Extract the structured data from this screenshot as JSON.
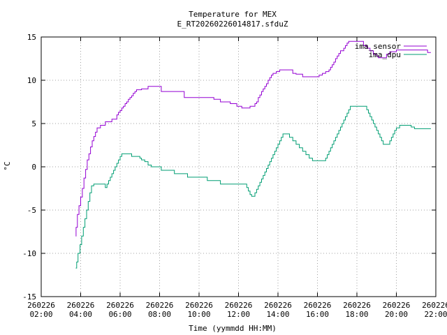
{
  "chart_data": {
    "type": "line",
    "title": "Temperature for MEX",
    "subtitle": "E_RT20260226014817.sfduZ",
    "xlabel": "Time (yymmdd HH:MM)",
    "ylabel": "°C",
    "xlim": [
      "260226 02:00",
      "260226 22:00"
    ],
    "ylim": [
      -15,
      15
    ],
    "grid": true,
    "legend": "top-right",
    "x_ticks": [
      {
        "date": "260226",
        "time": "02:00"
      },
      {
        "date": "260226",
        "time": "04:00"
      },
      {
        "date": "260226",
        "time": "06:00"
      },
      {
        "date": "260226",
        "time": "08:00"
      },
      {
        "date": "260226",
        "time": "10:00"
      },
      {
        "date": "260226",
        "time": "12:00"
      },
      {
        "date": "260226",
        "time": "14:00"
      },
      {
        "date": "260226",
        "time": "16:00"
      },
      {
        "date": "260226",
        "time": "18:00"
      },
      {
        "date": "260226",
        "time": "20:00"
      },
      {
        "date": "260226",
        "time": "22:00"
      }
    ],
    "y_ticks": [
      "-15",
      "-10",
      "-5",
      "0",
      "5",
      "10",
      "15"
    ],
    "series": [
      {
        "name": "ima_sensor",
        "color": "#9400d3",
        "step": true,
        "points": [
          [
            "03:45",
            -8.0
          ],
          [
            "03:46",
            -7.0
          ],
          [
            "03:50",
            -5.5
          ],
          [
            "03:55",
            -4.5
          ],
          [
            "04:00",
            -3.5
          ],
          [
            "04:05",
            -2.5
          ],
          [
            "04:10",
            -1.3
          ],
          [
            "04:15",
            -0.3
          ],
          [
            "04:20",
            0.8
          ],
          [
            "04:25",
            1.5
          ],
          [
            "04:30",
            2.3
          ],
          [
            "04:35",
            3.0
          ],
          [
            "04:40",
            3.5
          ],
          [
            "04:45",
            4.0
          ],
          [
            "04:50",
            4.5
          ],
          [
            "04:55",
            4.5
          ],
          [
            "05:00",
            4.8
          ],
          [
            "05:10",
            4.8
          ],
          [
            "05:15",
            5.2
          ],
          [
            "05:30",
            5.2
          ],
          [
            "05:35",
            5.5
          ],
          [
            "05:45",
            5.5
          ],
          [
            "05:50",
            6.0
          ],
          [
            "05:55",
            6.3
          ],
          [
            "06:00",
            6.5
          ],
          [
            "06:05",
            6.8
          ],
          [
            "06:10",
            7.0
          ],
          [
            "06:15",
            7.3
          ],
          [
            "06:20",
            7.5
          ],
          [
            "06:25",
            7.8
          ],
          [
            "06:30",
            8.0
          ],
          [
            "06:35",
            8.2
          ],
          [
            "06:40",
            8.5
          ],
          [
            "06:45",
            8.7
          ],
          [
            "06:50",
            8.9
          ],
          [
            "07:00",
            8.9
          ],
          [
            "07:05",
            9.0
          ],
          [
            "07:20",
            9.0
          ],
          [
            "07:25",
            9.3
          ],
          [
            "08:00",
            9.3
          ],
          [
            "08:05",
            8.7
          ],
          [
            "09:10",
            8.7
          ],
          [
            "09:15",
            8.0
          ],
          [
            "10:40",
            8.0
          ],
          [
            "10:45",
            7.8
          ],
          [
            "11:00",
            7.8
          ],
          [
            "11:05",
            7.5
          ],
          [
            "11:30",
            7.5
          ],
          [
            "11:35",
            7.3
          ],
          [
            "11:50",
            7.3
          ],
          [
            "11:55",
            7.0
          ],
          [
            "12:05",
            7.0
          ],
          [
            "12:10",
            6.8
          ],
          [
            "12:30",
            6.8
          ],
          [
            "12:35",
            7.0
          ],
          [
            "12:45",
            7.0
          ],
          [
            "12:50",
            7.3
          ],
          [
            "12:55",
            7.5
          ],
          [
            "13:00",
            8.0
          ],
          [
            "13:05",
            8.3
          ],
          [
            "13:10",
            8.7
          ],
          [
            "13:15",
            9.0
          ],
          [
            "13:20",
            9.3
          ],
          [
            "13:25",
            9.6
          ],
          [
            "13:30",
            10.0
          ],
          [
            "13:35",
            10.3
          ],
          [
            "13:40",
            10.6
          ],
          [
            "13:45",
            10.8
          ],
          [
            "13:55",
            11.0
          ],
          [
            "14:05",
            11.2
          ],
          [
            "14:40",
            11.2
          ],
          [
            "14:45",
            10.8
          ],
          [
            "14:55",
            10.7
          ],
          [
            "15:10",
            10.7
          ],
          [
            "15:15",
            10.4
          ],
          [
            "16:00",
            10.4
          ],
          [
            "16:05",
            10.6
          ],
          [
            "16:15",
            10.8
          ],
          [
            "16:25",
            11.0
          ],
          [
            "16:35",
            11.2
          ],
          [
            "16:40",
            11.5
          ],
          [
            "16:45",
            11.8
          ],
          [
            "16:50",
            12.1
          ],
          [
            "16:55",
            12.5
          ],
          [
            "17:00",
            12.8
          ],
          [
            "17:05",
            13.1
          ],
          [
            "17:10",
            13.4
          ],
          [
            "17:20",
            13.7
          ],
          [
            "17:25",
            14.0
          ],
          [
            "17:30",
            14.3
          ],
          [
            "17:35",
            14.5
          ],
          [
            "18:15",
            14.5
          ],
          [
            "18:20",
            14.0
          ],
          [
            "18:30",
            13.7
          ],
          [
            "18:40",
            13.4
          ],
          [
            "18:50",
            13.0
          ],
          [
            "19:00",
            12.8
          ],
          [
            "19:05",
            12.6
          ],
          [
            "19:25",
            12.6
          ],
          [
            "19:30",
            13.0
          ],
          [
            "19:40",
            13.3
          ],
          [
            "20:00",
            13.5
          ],
          [
            "21:30",
            13.5
          ],
          [
            "21:35",
            13.2
          ],
          [
            "21:45",
            13.2
          ]
        ]
      },
      {
        "name": "ima_dpu",
        "color": "#009e73",
        "step": true,
        "points": [
          [
            "03:45",
            -11.7
          ],
          [
            "03:48",
            -11.0
          ],
          [
            "03:52",
            -10.0
          ],
          [
            "03:58",
            -9.0
          ],
          [
            "04:03",
            -8.0
          ],
          [
            "04:08",
            -7.0
          ],
          [
            "04:13",
            -6.0
          ],
          [
            "04:18",
            -5.0
          ],
          [
            "04:23",
            -4.0
          ],
          [
            "04:28",
            -3.0
          ],
          [
            "04:33",
            -2.2
          ],
          [
            "04:40",
            -2.0
          ],
          [
            "05:10",
            -2.0
          ],
          [
            "05:15",
            -2.4
          ],
          [
            "05:20",
            -2.0
          ],
          [
            "05:25",
            -1.6
          ],
          [
            "05:30",
            -1.2
          ],
          [
            "05:35",
            -0.8
          ],
          [
            "05:40",
            -0.4
          ],
          [
            "05:45",
            0.0
          ],
          [
            "05:50",
            0.4
          ],
          [
            "05:55",
            0.8
          ],
          [
            "06:00",
            1.2
          ],
          [
            "06:05",
            1.5
          ],
          [
            "06:30",
            1.5
          ],
          [
            "06:35",
            1.2
          ],
          [
            "07:00",
            1.0
          ],
          [
            "07:05",
            0.8
          ],
          [
            "07:15",
            0.6
          ],
          [
            "07:25",
            0.2
          ],
          [
            "07:35",
            0.0
          ],
          [
            "08:00",
            0.0
          ],
          [
            "08:05",
            -0.4
          ],
          [
            "08:40",
            -0.4
          ],
          [
            "08:45",
            -0.8
          ],
          [
            "09:20",
            -0.8
          ],
          [
            "09:25",
            -1.2
          ],
          [
            "10:20",
            -1.2
          ],
          [
            "10:25",
            -1.6
          ],
          [
            "11:00",
            -1.6
          ],
          [
            "11:05",
            -2.0
          ],
          [
            "12:20",
            -2.0
          ],
          [
            "12:25",
            -2.4
          ],
          [
            "12:30",
            -2.8
          ],
          [
            "12:35",
            -3.2
          ],
          [
            "12:40",
            -3.4
          ],
          [
            "12:50",
            -3.0
          ],
          [
            "12:55",
            -2.6
          ],
          [
            "13:00",
            -2.2
          ],
          [
            "13:05",
            -1.8
          ],
          [
            "13:10",
            -1.4
          ],
          [
            "13:15",
            -1.0
          ],
          [
            "13:20",
            -0.6
          ],
          [
            "13:25",
            -0.2
          ],
          [
            "13:30",
            0.2
          ],
          [
            "13:35",
            0.6
          ],
          [
            "13:40",
            1.0
          ],
          [
            "13:45",
            1.4
          ],
          [
            "13:50",
            1.8
          ],
          [
            "13:55",
            2.2
          ],
          [
            "14:00",
            2.6
          ],
          [
            "14:05",
            3.0
          ],
          [
            "14:10",
            3.4
          ],
          [
            "14:15",
            3.8
          ],
          [
            "14:30",
            3.8
          ],
          [
            "14:35",
            3.4
          ],
          [
            "14:45",
            3.0
          ],
          [
            "14:55",
            2.6
          ],
          [
            "15:05",
            2.2
          ],
          [
            "15:15",
            1.8
          ],
          [
            "15:25",
            1.4
          ],
          [
            "15:35",
            1.0
          ],
          [
            "15:45",
            0.7
          ],
          [
            "16:20",
            0.7
          ],
          [
            "16:25",
            1.0
          ],
          [
            "16:30",
            1.4
          ],
          [
            "16:35",
            1.8
          ],
          [
            "16:40",
            2.2
          ],
          [
            "16:45",
            2.6
          ],
          [
            "16:50",
            3.0
          ],
          [
            "16:55",
            3.4
          ],
          [
            "17:00",
            3.8
          ],
          [
            "17:05",
            4.2
          ],
          [
            "17:10",
            4.6
          ],
          [
            "17:15",
            5.0
          ],
          [
            "17:20",
            5.4
          ],
          [
            "17:25",
            5.8
          ],
          [
            "17:30",
            6.2
          ],
          [
            "17:35",
            6.6
          ],
          [
            "17:40",
            7.0
          ],
          [
            "18:25",
            7.0
          ],
          [
            "18:30",
            6.6
          ],
          [
            "18:35",
            6.2
          ],
          [
            "18:40",
            5.8
          ],
          [
            "18:45",
            5.4
          ],
          [
            "18:50",
            5.0
          ],
          [
            "18:55",
            4.6
          ],
          [
            "19:00",
            4.2
          ],
          [
            "19:05",
            3.8
          ],
          [
            "19:10",
            3.4
          ],
          [
            "19:15",
            3.0
          ],
          [
            "19:20",
            2.6
          ],
          [
            "19:35",
            2.6
          ],
          [
            "19:40",
            3.0
          ],
          [
            "19:45",
            3.4
          ],
          [
            "19:50",
            3.8
          ],
          [
            "19:55",
            4.2
          ],
          [
            "20:00",
            4.5
          ],
          [
            "20:10",
            4.8
          ],
          [
            "20:40",
            4.8
          ],
          [
            "20:45",
            4.6
          ],
          [
            "20:55",
            4.4
          ],
          [
            "21:45",
            4.4
          ]
        ]
      }
    ]
  }
}
